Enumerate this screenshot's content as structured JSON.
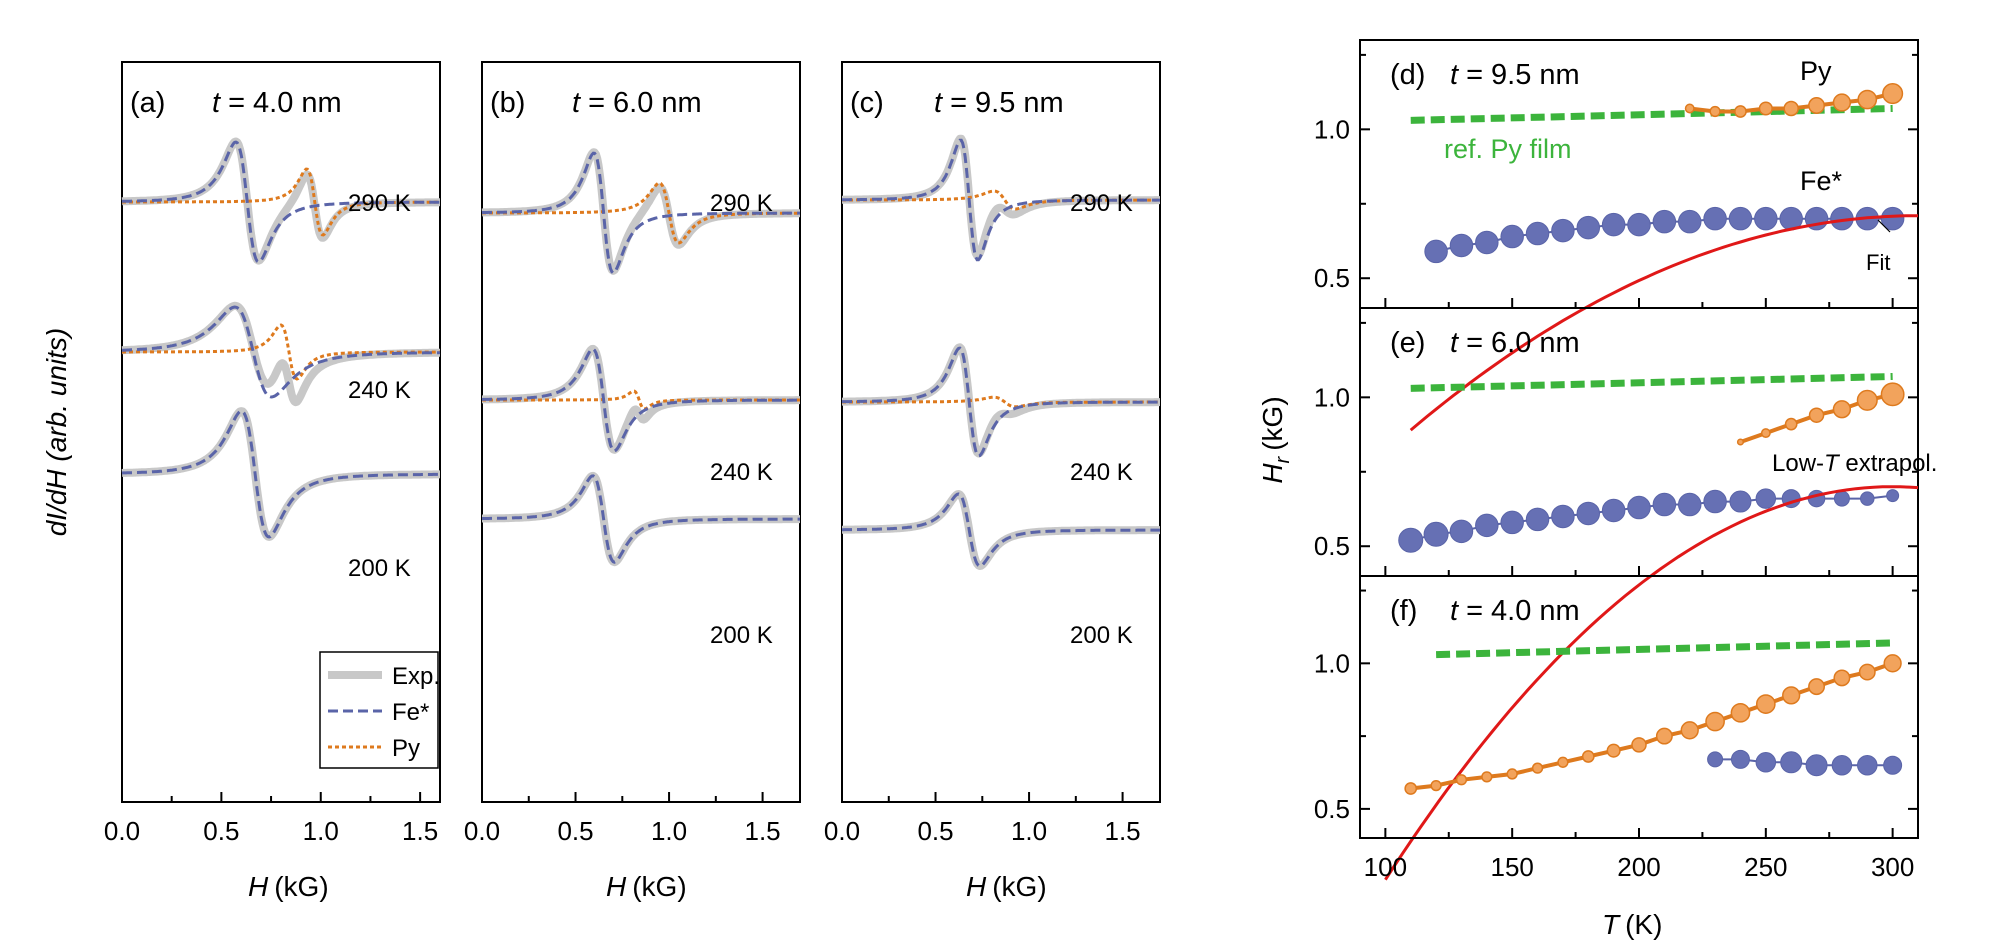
{
  "colors": {
    "exp": "#c8c8c8",
    "fe": "#5a64a8",
    "py": "#de7a1e",
    "ref": "#3cb43c",
    "fit": "#e01818",
    "fe_marker": "#6670b4",
    "py_marker": "#f2a35c",
    "py_marker_edge": "#de7a1e"
  },
  "left_panels": {
    "xlabel_var": "H",
    "xlabel_unit": "(kG)",
    "ylabel": "dI/dH (arb. units)",
    "xticks": [
      "0.0",
      "0.5",
      "1.0",
      "1.5"
    ],
    "legend": [
      "Exp.",
      "Fe*",
      "Py"
    ],
    "panels": [
      {
        "label": "(a)",
        "tvar": "t",
        "eq": "= 4.0 nm",
        "temps": [
          "290 K",
          "240 K",
          "200 K"
        ],
        "fe_hr": [
          0.63,
          0.66,
          0.67
        ],
        "py_hr": [
          0.97,
          0.84,
          null
        ]
      },
      {
        "label": "(b)",
        "tvar": "t",
        "eq": "= 6.0 nm",
        "temps": [
          "290 K",
          "240 K",
          "200 K"
        ],
        "fe_hr": [
          0.65,
          0.65,
          0.65
        ],
        "py_hr": [
          1.0,
          0.84,
          null
        ]
      },
      {
        "label": "(c)",
        "tvar": "t",
        "eq": "= 9.5 nm",
        "temps": [
          "290 K",
          "240 K",
          "200 K"
        ],
        "fe_hr": [
          0.68,
          0.68,
          0.68
        ],
        "py_hr": [
          0.87,
          0.87,
          null
        ]
      }
    ]
  },
  "right_panels": {
    "xlabel_var": "T",
    "xlabel_unit": "(K)",
    "ylabel_var": "H",
    "ylabel_sub": "r",
    "ylabel_unit": "(kG)",
    "xticks": [
      "100",
      "150",
      "200",
      "250",
      "300"
    ],
    "yticks": [
      "0.5",
      "1.0"
    ],
    "ann_py": "Py",
    "ann_fe": "Fe*",
    "ann_ref": "ref. Py film",
    "ann_fit": "Fit",
    "ann_low_pre": "Low-",
    "ann_low_var": "T",
    "ann_low_post": " extrapol.",
    "panels": [
      {
        "label": "(d)",
        "tvar": "t",
        "eq": "= 9.5 nm"
      },
      {
        "label": "(e)",
        "tvar": "t",
        "eq": "= 6.0 nm"
      },
      {
        "label": "(f)",
        "tvar": "t",
        "eq": "= 4.0 nm"
      }
    ]
  },
  "chart_data": [
    {
      "type": "line",
      "panel": "(a)",
      "title": "t = 4.0 nm",
      "xlabel": "H (kG)",
      "ylabel": "dI/dH (arb. units)",
      "xlim": [
        0.0,
        1.6
      ],
      "series": [
        {
          "name": "Exp."
        },
        {
          "name": "Fe*"
        },
        {
          "name": "Py"
        }
      ],
      "curves": [
        {
          "temp": "290 K",
          "fe": {
            "hr": 0.63,
            "w": 0.1,
            "a": 1.0
          },
          "py": {
            "hr": 0.97,
            "w": 0.07,
            "a": 0.55
          }
        },
        {
          "temp": "240 K",
          "fe": {
            "hr": 0.66,
            "w": 0.16,
            "a": 0.75
          },
          "py": {
            "hr": 0.84,
            "w": 0.07,
            "a": 0.45
          }
        },
        {
          "temp": "200 K",
          "fe": {
            "hr": 0.67,
            "w": 0.12,
            "a": 1.05
          },
          "py": null
        }
      ]
    },
    {
      "type": "line",
      "panel": "(b)",
      "title": "t = 6.0 nm",
      "xlabel": "H (kG)",
      "xlim": [
        0.0,
        1.7
      ],
      "series": [
        {
          "name": "Exp."
        },
        {
          "name": "Fe*"
        },
        {
          "name": "Py"
        }
      ],
      "curves": [
        {
          "temp": "290 K",
          "fe": {
            "hr": 0.65,
            "w": 0.09,
            "a": 1.0
          },
          "py": {
            "hr": 1.0,
            "w": 0.09,
            "a": 0.5
          }
        },
        {
          "temp": "240 K",
          "fe": {
            "hr": 0.65,
            "w": 0.1,
            "a": 0.85
          },
          "py": {
            "hr": 0.84,
            "w": 0.05,
            "a": 0.15
          }
        },
        {
          "temp": "200 K",
          "fe": {
            "hr": 0.65,
            "w": 0.1,
            "a": 0.72
          },
          "py": null
        }
      ]
    },
    {
      "type": "line",
      "panel": "(c)",
      "title": "t = 9.5 nm",
      "xlabel": "H (kG)",
      "xlim": [
        0.0,
        1.7
      ],
      "series": [
        {
          "name": "Exp."
        },
        {
          "name": "Fe*"
        },
        {
          "name": "Py"
        }
      ],
      "curves": [
        {
          "temp": "290 K",
          "fe": {
            "hr": 0.68,
            "w": 0.08,
            "a": 1.0
          },
          "py": {
            "hr": 0.87,
            "w": 0.1,
            "a": 0.15
          }
        },
        {
          "temp": "240 K",
          "fe": {
            "hr": 0.68,
            "w": 0.09,
            "a": 0.9
          },
          "py": {
            "hr": 0.87,
            "w": 0.1,
            "a": 0.08
          }
        },
        {
          "temp": "200 K",
          "fe": {
            "hr": 0.68,
            "w": 0.1,
            "a": 0.6
          },
          "py": null
        }
      ]
    },
    {
      "type": "scatter",
      "panel": "(d)",
      "title": "t = 9.5 nm",
      "xlabel": "T (K)",
      "ylabel": "Hr (kG)",
      "xlim": [
        90,
        310
      ],
      "ylim": [
        0.4,
        1.3
      ],
      "ref": {
        "name": "ref. Py film",
        "x": [
          110,
          300
        ],
        "y": [
          1.03,
          1.07
        ]
      },
      "py": {
        "name": "Py",
        "x": [
          220,
          230,
          240,
          250,
          260,
          270,
          280,
          290,
          300
        ],
        "y": [
          1.07,
          1.06,
          1.06,
          1.07,
          1.07,
          1.08,
          1.09,
          1.1,
          1.12
        ],
        "s": [
          6,
          7,
          8,
          9,
          10,
          11,
          12,
          13,
          14
        ]
      },
      "fe": {
        "name": "Fe*",
        "x": [
          120,
          130,
          140,
          150,
          160,
          170,
          180,
          190,
          200,
          210,
          220,
          230,
          240,
          250,
          260,
          270,
          280,
          290,
          300
        ],
        "y": [
          0.59,
          0.61,
          0.62,
          0.64,
          0.65,
          0.66,
          0.67,
          0.68,
          0.68,
          0.69,
          0.69,
          0.7,
          0.7,
          0.7,
          0.7,
          0.7,
          0.7,
          0.7,
          0.7
        ],
        "s": [
          15,
          15,
          15,
          15,
          15,
          15,
          15,
          15,
          15,
          15,
          15,
          15,
          15,
          15,
          15,
          15,
          15,
          15,
          15
        ]
      },
      "fit": {
        "name": "Fit",
        "x": [
          110,
          310
        ],
        "a": 0.71,
        "b": 0.0018,
        "c": 310
      }
    },
    {
      "type": "scatter",
      "panel": "(e)",
      "title": "t = 6.0 nm",
      "xlabel": "T (K)",
      "ylabel": "Hr (kG)",
      "xlim": [
        90,
        310
      ],
      "ylim": [
        0.4,
        1.3
      ],
      "ref": {
        "name": "ref. Py film",
        "x": [
          110,
          300
        ],
        "y": [
          1.03,
          1.07
        ]
      },
      "py": {
        "name": "Py",
        "x": [
          240,
          250,
          260,
          270,
          280,
          290,
          300
        ],
        "y": [
          0.85,
          0.88,
          0.91,
          0.94,
          0.96,
          0.99,
          1.01
        ],
        "s": [
          4,
          6,
          8,
          10,
          12,
          14,
          16
        ]
      },
      "fe": {
        "name": "Fe*",
        "x": [
          110,
          120,
          130,
          140,
          150,
          160,
          170,
          180,
          190,
          200,
          210,
          220,
          230,
          240,
          250,
          260,
          270,
          280,
          290,
          300
        ],
        "y": [
          0.52,
          0.54,
          0.55,
          0.57,
          0.58,
          0.59,
          0.6,
          0.61,
          0.62,
          0.63,
          0.64,
          0.64,
          0.65,
          0.65,
          0.66,
          0.66,
          0.66,
          0.66,
          0.66,
          0.67
        ],
        "s": [
          16,
          16,
          15,
          15,
          15,
          15,
          15,
          15,
          15,
          15,
          15,
          15,
          15,
          14,
          13,
          12,
          11,
          10,
          9,
          8
        ]
      },
      "fit": {
        "name": "Low-T extrapol.",
        "x": [
          100,
          310
        ],
        "a": 0.7,
        "b": 0.0033,
        "c": 300
      }
    },
    {
      "type": "scatter",
      "panel": "(f)",
      "title": "t = 4.0 nm",
      "xlabel": "T (K)",
      "ylabel": "Hr (kG)",
      "xlim": [
        90,
        310
      ],
      "ylim": [
        0.4,
        1.3
      ],
      "ref": {
        "name": "ref. Py film",
        "x": [
          120,
          300
        ],
        "y": [
          1.03,
          1.07
        ]
      },
      "py": {
        "name": "Py",
        "x": [
          110,
          120,
          130,
          140,
          150,
          160,
          170,
          180,
          190,
          200,
          210,
          220,
          230,
          240,
          250,
          260,
          270,
          280,
          290,
          300
        ],
        "y": [
          0.57,
          0.58,
          0.6,
          0.61,
          0.62,
          0.64,
          0.66,
          0.68,
          0.7,
          0.72,
          0.75,
          0.77,
          0.8,
          0.83,
          0.86,
          0.89,
          0.92,
          0.95,
          0.97,
          1.0
        ],
        "s": [
          8,
          7,
          7,
          7,
          7,
          7,
          7,
          8,
          9,
          10,
          11,
          12,
          13,
          13,
          13,
          12,
          11,
          11,
          11,
          12
        ]
      },
      "fe": {
        "name": "Fe*",
        "x": [
          230,
          240,
          250,
          260,
          270,
          280,
          290,
          300
        ],
        "y": [
          0.67,
          0.67,
          0.66,
          0.66,
          0.65,
          0.65,
          0.65,
          0.65
        ],
        "s": [
          10,
          12,
          13,
          14,
          14,
          13,
          13,
          12
        ]
      },
      "fit": null
    }
  ]
}
